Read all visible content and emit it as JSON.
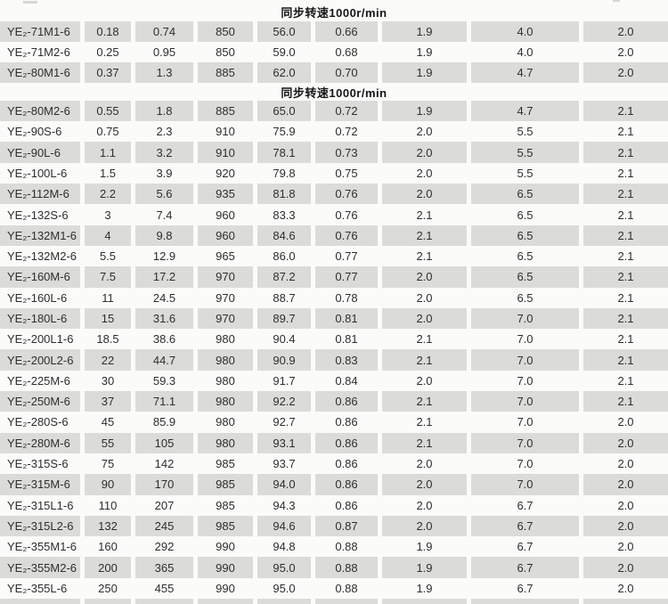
{
  "page": {
    "background": "#fbfbfa",
    "stripe_color": "#dbdbd9",
    "text_color": "#2e2e2e",
    "header_text_color": "#161616"
  },
  "table": {
    "columns_count": 9,
    "sections": [
      {
        "header": "同步转速1000r/min",
        "rows": [
          [
            "YE₂-71M1-6",
            "0.18",
            "0.74",
            "850",
            "56.0",
            "0.66",
            "1.9",
            "4.0",
            "2.0"
          ],
          [
            "YE₂-71M2-6",
            "0.25",
            "0.95",
            "850",
            "59.0",
            "0.68",
            "1.9",
            "4.0",
            "2.0"
          ],
          [
            "YE₂-80M1-6",
            "0.37",
            "1.3",
            "885",
            "62.0",
            "0.70",
            "1.9",
            "4.7",
            "2.0"
          ]
        ]
      },
      {
        "header": "同步转速1000r/min",
        "rows": [
          [
            "YE₂-80M2-6",
            "0.55",
            "1.8",
            "885",
            "65.0",
            "0.72",
            "1.9",
            "4.7",
            "2.1"
          ],
          [
            "YE₂-90S-6",
            "0.75",
            "2.3",
            "910",
            "75.9",
            "0.72",
            "2.0",
            "5.5",
            "2.1"
          ],
          [
            "YE₂-90L-6",
            "1.1",
            "3.2",
            "910",
            "78.1",
            "0.73",
            "2.0",
            "5.5",
            "2.1"
          ],
          [
            "YE₂-100L-6",
            "1.5",
            "3.9",
            "920",
            "79.8",
            "0.75",
            "2.0",
            "5.5",
            "2.1"
          ],
          [
            "YE₂-112M-6",
            "2.2",
            "5.6",
            "935",
            "81.8",
            "0.76",
            "2.0",
            "6.5",
            "2.1"
          ],
          [
            "YE₂-132S-6",
            "3",
            "7.4",
            "960",
            "83.3",
            "0.76",
            "2.1",
            "6.5",
            "2.1"
          ],
          [
            "YE₂-132M1-6",
            "4",
            "9.8",
            "960",
            "84.6",
            "0.76",
            "2.1",
            "6.5",
            "2.1"
          ],
          [
            "YE₂-132M2-6",
            "5.5",
            "12.9",
            "965",
            "86.0",
            "0.77",
            "2.1",
            "6.5",
            "2.1"
          ],
          [
            "YE₂-160M-6",
            "7.5",
            "17.2",
            "970",
            "87.2",
            "0.77",
            "2.0",
            "6.5",
            "2.1"
          ],
          [
            "YE₂-160L-6",
            "11",
            "24.5",
            "970",
            "88.7",
            "0.78",
            "2.0",
            "6.5",
            "2.1"
          ],
          [
            "YE₂-180L-6",
            "15",
            "31.6",
            "970",
            "89.7",
            "0.81",
            "2.0",
            "7.0",
            "2.1"
          ],
          [
            "YE₂-200L1-6",
            "18.5",
            "38.6",
            "980",
            "90.4",
            "0.81",
            "2.1",
            "7.0",
            "2.1"
          ],
          [
            "YE₂-200L2-6",
            "22",
            "44.7",
            "980",
            "90.9",
            "0.83",
            "2.1",
            "7.0",
            "2.1"
          ],
          [
            "YE₂-225M-6",
            "30",
            "59.3",
            "980",
            "91.7",
            "0.84",
            "2.0",
            "7.0",
            "2.1"
          ],
          [
            "YE₂-250M-6",
            "37",
            "71.1",
            "980",
            "92.2",
            "0.86",
            "2.1",
            "7.0",
            "2.1"
          ],
          [
            "YE₂-280S-6",
            "45",
            "85.9",
            "980",
            "92.7",
            "0.86",
            "2.1",
            "7.0",
            "2.0"
          ],
          [
            "YE₂-280M-6",
            "55",
            "105",
            "980",
            "93.1",
            "0.86",
            "2.1",
            "7.0",
            "2.0"
          ],
          [
            "YE₂-315S-6",
            "75",
            "142",
            "985",
            "93.7",
            "0.86",
            "2.0",
            "7.0",
            "2.0"
          ],
          [
            "YE₂-315M-6",
            "90",
            "170",
            "985",
            "94.0",
            "0.86",
            "2.0",
            "7.0",
            "2.0"
          ],
          [
            "YE₂-315L1-6",
            "110",
            "207",
            "985",
            "94.3",
            "0.86",
            "2.0",
            "6.7",
            "2.0"
          ],
          [
            "YE₂-315L2-6",
            "132",
            "245",
            "985",
            "94.6",
            "0.87",
            "2.0",
            "6.7",
            "2.0"
          ],
          [
            "YE₂-355M1-6",
            "160",
            "292",
            "990",
            "94.8",
            "0.88",
            "1.9",
            "6.7",
            "2.0"
          ],
          [
            "YE₂-355M2-6",
            "200",
            "365",
            "990",
            "95.0",
            "0.88",
            "1.9",
            "6.7",
            "2.0"
          ],
          [
            "YE₂-355L-6",
            "250",
            "455",
            "990",
            "95.0",
            "0.88",
            "1.9",
            "6.7",
            "2.0"
          ]
        ]
      }
    ]
  }
}
